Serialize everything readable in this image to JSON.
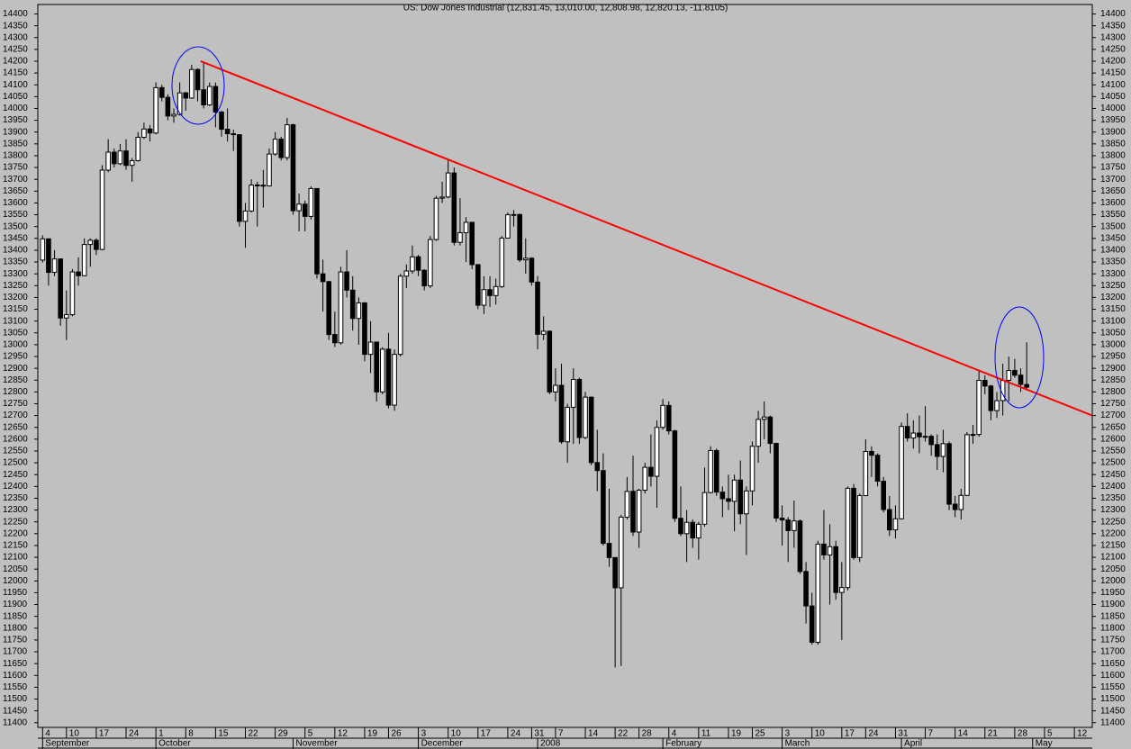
{
  "chart_data": {
    "type": "candlestick",
    "title": "US: Dow Jones Industrial (12,831.45, 13,010.00, 12,808.98, 12,820.13, -11.8105)",
    "up_color": "#ffffff",
    "down_color": "#000000",
    "candles": [
      [
        13358,
        13463,
        13348,
        13448
      ],
      [
        13448,
        13450,
        13250,
        13306
      ],
      [
        13306,
        13400,
        13290,
        13363
      ],
      [
        13363,
        13363,
        13080,
        13113
      ],
      [
        13113,
        13230,
        13020,
        13127
      ],
      [
        13127,
        13320,
        13120,
        13308
      ],
      [
        13308,
        13370,
        13250,
        13292
      ],
      [
        13292,
        13450,
        13290,
        13424
      ],
      [
        13424,
        13450,
        13330,
        13442
      ],
      [
        13442,
        13450,
        13380,
        13403
      ],
      [
        13403,
        13760,
        13400,
        13739
      ],
      [
        13739,
        13870,
        13730,
        13815
      ],
      [
        13815,
        13830,
        13750,
        13766
      ],
      [
        13766,
        13850,
        13760,
        13820
      ],
      [
        13820,
        13870,
        13740,
        13759
      ],
      [
        13759,
        13790,
        13690,
        13779
      ],
      [
        13779,
        13900,
        13775,
        13878
      ],
      [
        13878,
        13940,
        13870,
        13913
      ],
      [
        13913,
        13930,
        13860,
        13896
      ],
      [
        13896,
        14110,
        13890,
        14088
      ],
      [
        14088,
        14100,
        14030,
        14047
      ],
      [
        14047,
        14060,
        13950,
        13968
      ],
      [
        13968,
        14000,
        13940,
        13975
      ],
      [
        13975,
        14110,
        13970,
        14066
      ],
      [
        14066,
        14070,
        13990,
        14044
      ],
      [
        14044,
        14185,
        14040,
        14165
      ],
      [
        14165,
        14170,
        14030,
        14079
      ],
      [
        14079,
        14198,
        14000,
        14015
      ],
      [
        14015,
        14110,
        14010,
        14093
      ],
      [
        14093,
        14110,
        13920,
        13985
      ],
      [
        13985,
        13990,
        13880,
        13912
      ],
      [
        13912,
        14000,
        13860,
        13893
      ],
      [
        13893,
        13910,
        13820,
        13889
      ],
      [
        13889,
        13890,
        13500,
        13522
      ],
      [
        13522,
        13600,
        13410,
        13566
      ],
      [
        13566,
        13700,
        13560,
        13676
      ],
      [
        13676,
        13690,
        13500,
        13675
      ],
      [
        13675,
        13740,
        13580,
        13672
      ],
      [
        13672,
        13830,
        13670,
        13807
      ],
      [
        13807,
        13900,
        13800,
        13870
      ],
      [
        13870,
        13880,
        13780,
        13792
      ],
      [
        13792,
        13960,
        13780,
        13931
      ],
      [
        13931,
        13935,
        13550,
        13567
      ],
      [
        13567,
        13640,
        13480,
        13595
      ],
      [
        13595,
        13610,
        13480,
        13543
      ],
      [
        13543,
        13670,
        13530,
        13661
      ],
      [
        13661,
        13662,
        13280,
        13300
      ],
      [
        13300,
        13360,
        13140,
        13267
      ],
      [
        13267,
        13270,
        13020,
        13043
      ],
      [
        13043,
        13140,
        12990,
        13008
      ],
      [
        13008,
        13330,
        13000,
        13308
      ],
      [
        13308,
        13400,
        13200,
        13231
      ],
      [
        13231,
        13290,
        13060,
        13111
      ],
      [
        13111,
        13200,
        13000,
        13177
      ],
      [
        13177,
        13180,
        12930,
        12959
      ],
      [
        12959,
        13100,
        12880,
        13011
      ],
      [
        13011,
        13012,
        12760,
        12800
      ],
      [
        12800,
        12990,
        12790,
        12981
      ],
      [
        12981,
        13050,
        12730,
        12744
      ],
      [
        12744,
        12980,
        12720,
        12959
      ],
      [
        12959,
        13300,
        12950,
        13290
      ],
      [
        13290,
        13340,
        13240,
        13312
      ],
      [
        13312,
        13420,
        13300,
        13372
      ],
      [
        13372,
        13380,
        13290,
        13315
      ],
      [
        13315,
        13320,
        13230,
        13249
      ],
      [
        13249,
        13460,
        13240,
        13445
      ],
      [
        13445,
        13630,
        13440,
        13620
      ],
      [
        13620,
        13690,
        13600,
        13625
      ],
      [
        13625,
        13780,
        13620,
        13727
      ],
      [
        13727,
        13750,
        13420,
        13433
      ],
      [
        13433,
        13620,
        13420,
        13474
      ],
      [
        13474,
        13540,
        13350,
        13518
      ],
      [
        13518,
        13520,
        13320,
        13339
      ],
      [
        13339,
        13340,
        13150,
        13167
      ],
      [
        13167,
        13290,
        13130,
        13233
      ],
      [
        13233,
        13290,
        13160,
        13208
      ],
      [
        13208,
        13280,
        13170,
        13246
      ],
      [
        13246,
        13460,
        13240,
        13451
      ],
      [
        13451,
        13560,
        13450,
        13550
      ],
      [
        13550,
        13570,
        13500,
        13551
      ],
      [
        13551,
        13555,
        13350,
        13359
      ],
      [
        13359,
        13450,
        13300,
        13366
      ],
      [
        13366,
        13370,
        13250,
        13265
      ],
      [
        13265,
        13290,
        12980,
        13044
      ],
      [
        13044,
        13120,
        13020,
        13057
      ],
      [
        13057,
        13060,
        12790,
        12800
      ],
      [
        12800,
        12900,
        12760,
        12828
      ],
      [
        12828,
        12920,
        12580,
        12589
      ],
      [
        12589,
        12750,
        12500,
        12735
      ],
      [
        12735,
        12900,
        12580,
        12853
      ],
      [
        12853,
        12860,
        12580,
        12607
      ],
      [
        12607,
        12800,
        12600,
        12778
      ],
      [
        12778,
        12780,
        12490,
        12501
      ],
      [
        12501,
        12640,
        12380,
        12467
      ],
      [
        12467,
        12540,
        12150,
        12159
      ],
      [
        12159,
        12390,
        12060,
        12099
      ],
      [
        12099,
        12100,
        11634,
        11971
      ],
      [
        11971,
        12280,
        11640,
        12270
      ],
      [
        12270,
        12440,
        12260,
        12379
      ],
      [
        12379,
        12530,
        12190,
        12207
      ],
      [
        12207,
        12390,
        12140,
        12384
      ],
      [
        12384,
        12500,
        12370,
        12481
      ],
      [
        12481,
        12620,
        12400,
        12443
      ],
      [
        12443,
        12680,
        12310,
        12650
      ],
      [
        12650,
        12770,
        12640,
        12743
      ],
      [
        12743,
        12760,
        12620,
        12635
      ],
      [
        12635,
        12640,
        12250,
        12265
      ],
      [
        12265,
        12400,
        12190,
        12200
      ],
      [
        12200,
        12300,
        12080,
        12248
      ],
      [
        12248,
        12260,
        12140,
        12182
      ],
      [
        12182,
        12250,
        12090,
        12240
      ],
      [
        12240,
        12480,
        12230,
        12374
      ],
      [
        12374,
        12570,
        12370,
        12552
      ],
      [
        12552,
        12560,
        12360,
        12376
      ],
      [
        12376,
        12400,
        12270,
        12348
      ],
      [
        12348,
        12450,
        12300,
        12337
      ],
      [
        12337,
        12450,
        12210,
        12427
      ],
      [
        12427,
        12510,
        12240,
        12284
      ],
      [
        12284,
        12400,
        12110,
        12381
      ],
      [
        12381,
        12590,
        12320,
        12570
      ],
      [
        12570,
        12720,
        12500,
        12684
      ],
      [
        12684,
        12760,
        12600,
        12694
      ],
      [
        12694,
        12700,
        12540,
        12582
      ],
      [
        12582,
        12585,
        12250,
        12266
      ],
      [
        12266,
        12320,
        12150,
        12258
      ],
      [
        12258,
        12270,
        12080,
        12213
      ],
      [
        12213,
        12340,
        12140,
        12254
      ],
      [
        12254,
        12260,
        12030,
        12040
      ],
      [
        12040,
        12080,
        11820,
        11894
      ],
      [
        11894,
        11950,
        11730,
        11740
      ],
      [
        11740,
        12170,
        11730,
        12156
      ],
      [
        12156,
        12300,
        12090,
        12110
      ],
      [
        12110,
        12240,
        11900,
        12145
      ],
      [
        12145,
        12170,
        11920,
        11951
      ],
      [
        11951,
        12080,
        11750,
        11972
      ],
      [
        11972,
        12400,
        11960,
        12392
      ],
      [
        12392,
        12410,
        12090,
        12099
      ],
      [
        12099,
        12370,
        12080,
        12361
      ],
      [
        12361,
        12600,
        12360,
        12548
      ],
      [
        12548,
        12570,
        12440,
        12532
      ],
      [
        12532,
        12540,
        12400,
        12422
      ],
      [
        12422,
        12440,
        12290,
        12302
      ],
      [
        12302,
        12360,
        12190,
        12216
      ],
      [
        12216,
        12320,
        12180,
        12263
      ],
      [
        12263,
        12670,
        12260,
        12654
      ],
      [
        12654,
        12710,
        12590,
        12605
      ],
      [
        12605,
        12680,
        12560,
        12626
      ],
      [
        12626,
        12700,
        12540,
        12610
      ],
      [
        12610,
        12740,
        12590,
        12612
      ],
      [
        12612,
        12620,
        12530,
        12577
      ],
      [
        12577,
        12620,
        12470,
        12527
      ],
      [
        12527,
        12640,
        12460,
        12581
      ],
      [
        12581,
        12590,
        12300,
        12325
      ],
      [
        12325,
        12360,
        12270,
        12302
      ],
      [
        12302,
        12390,
        12260,
        12362
      ],
      [
        12362,
        12630,
        12360,
        12619
      ],
      [
        12619,
        12660,
        12580,
        12620
      ],
      [
        12620,
        12890,
        12610,
        12849
      ],
      [
        12849,
        12870,
        12790,
        12825
      ],
      [
        12825,
        12830,
        12680,
        12721
      ],
      [
        12721,
        12800,
        12690,
        12763
      ],
      [
        12763,
        12920,
        12700,
        12849
      ],
      [
        12849,
        12950,
        12760,
        12891
      ],
      [
        12891,
        12940,
        12860,
        12871
      ],
      [
        12871,
        12900,
        12800,
        12832
      ],
      [
        12831.45,
        13010,
        12808.98,
        12820.13
      ]
    ],
    "xlim": [
      -0.8,
      176
    ],
    "ylim": [
      11380,
      14440
    ],
    "xticks": [
      {
        "value": 0,
        "label": "4"
      },
      {
        "value": 4,
        "label": "10"
      },
      {
        "value": 9,
        "label": "17"
      },
      {
        "value": 14,
        "label": "24"
      },
      {
        "value": 19,
        "label": "1"
      },
      {
        "value": 24,
        "label": "8"
      },
      {
        "value": 29,
        "label": "15"
      },
      {
        "value": 34,
        "label": "22"
      },
      {
        "value": 39,
        "label": "29"
      },
      {
        "value": 44,
        "label": "5"
      },
      {
        "value": 49,
        "label": "12"
      },
      {
        "value": 54,
        "label": "19"
      },
      {
        "value": 58,
        "label": "26"
      },
      {
        "value": 63,
        "label": "3"
      },
      {
        "value": 68,
        "label": "10"
      },
      {
        "value": 73,
        "label": "17"
      },
      {
        "value": 78,
        "label": "24"
      },
      {
        "value": 82,
        "label": "31"
      },
      {
        "value": 86,
        "label": "7"
      },
      {
        "value": 91,
        "label": "14"
      },
      {
        "value": 96,
        "label": "22"
      },
      {
        "value": 100,
        "label": "28"
      },
      {
        "value": 105,
        "label": "4"
      },
      {
        "value": 110,
        "label": "11"
      },
      {
        "value": 115,
        "label": "19"
      },
      {
        "value": 119,
        "label": "25"
      },
      {
        "value": 124,
        "label": "3"
      },
      {
        "value": 129,
        "label": "10"
      },
      {
        "value": 134,
        "label": "17"
      },
      {
        "value": 138,
        "label": "24"
      },
      {
        "value": 143,
        "label": "31"
      },
      {
        "value": 148,
        "label": "7"
      },
      {
        "value": 153,
        "label": "14"
      },
      {
        "value": 158,
        "label": "21"
      },
      {
        "value": 163,
        "label": "28"
      },
      {
        "value": 168,
        "label": "5"
      },
      {
        "value": 173,
        "label": "12"
      }
    ],
    "month_ticks": [
      {
        "value": 0,
        "label": "September"
      },
      {
        "value": 19,
        "label": "October"
      },
      {
        "value": 42,
        "label": "November"
      },
      {
        "value": 63,
        "label": "December"
      },
      {
        "value": 83,
        "label": "2008"
      },
      {
        "value": 104,
        "label": "February"
      },
      {
        "value": 124,
        "label": "March"
      },
      {
        "value": 144,
        "label": "April"
      },
      {
        "value": 166,
        "label": "May"
      }
    ],
    "yticks": [
      11400,
      11450,
      11500,
      11550,
      11600,
      11650,
      11700,
      11750,
      11800,
      11850,
      11900,
      11950,
      12000,
      12050,
      12100,
      12150,
      12200,
      12250,
      12300,
      12350,
      12400,
      12450,
      12500,
      12550,
      12600,
      12650,
      12700,
      12750,
      12800,
      12850,
      12900,
      12950,
      13000,
      13050,
      13100,
      13150,
      13200,
      13250,
      13300,
      13350,
      13400,
      13450,
      13500,
      13550,
      13600,
      13650,
      13700,
      13750,
      13800,
      13850,
      13900,
      13950,
      14000,
      14050,
      14100,
      14150,
      14200,
      14250,
      14300,
      14350,
      14400
    ],
    "trendline": {
      "color": "#ff0000",
      "x": [
        26.5,
        176
      ],
      "y": [
        14200,
        12700
      ]
    }
  }
}
